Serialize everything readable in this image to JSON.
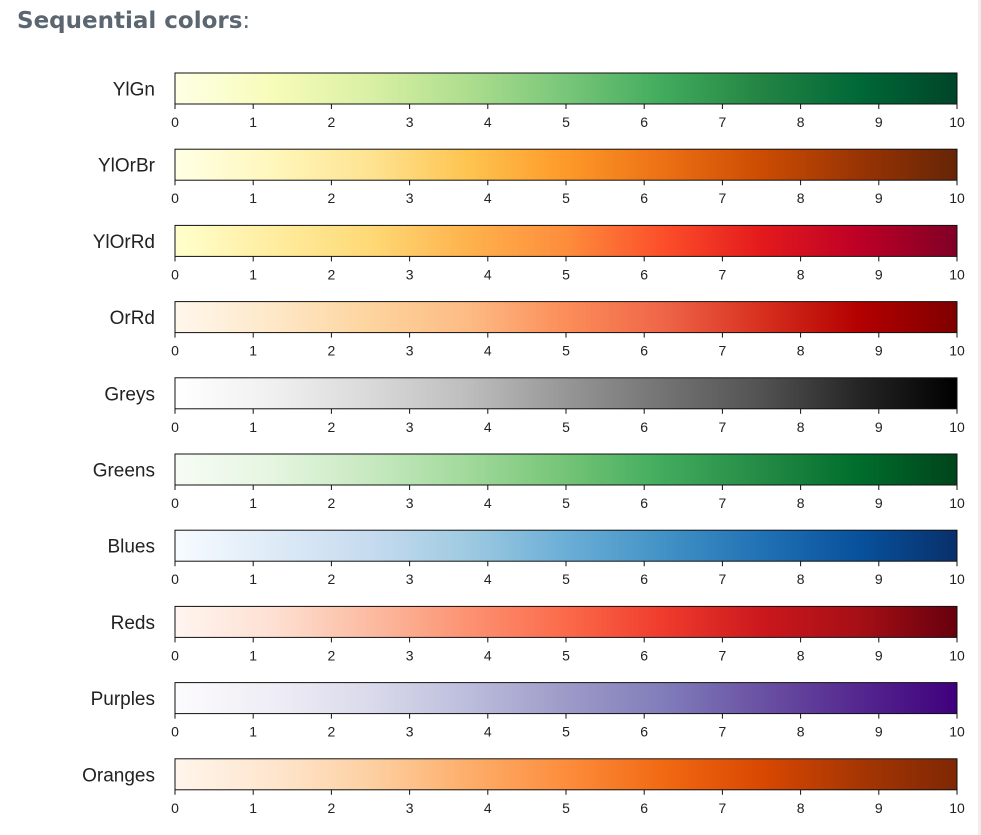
{
  "heading": {
    "bold": "Sequential colors",
    "suffix": ":"
  },
  "chart_data": {
    "type": "heatmap",
    "title": "Sequential colors",
    "xlim": [
      0,
      10
    ],
    "ticks": [
      0,
      1,
      2,
      3,
      4,
      5,
      6,
      7,
      8,
      9,
      10
    ],
    "palettes": [
      {
        "name": "YlGn",
        "colors": [
          "#ffffe5",
          "#f7fcb9",
          "#d9f0a3",
          "#addd8e",
          "#78c679",
          "#41ab5d",
          "#238443",
          "#006837",
          "#004529"
        ]
      },
      {
        "name": "YlOrBr",
        "colors": [
          "#ffffe5",
          "#fff7bc",
          "#fee391",
          "#fec44f",
          "#fe9929",
          "#ec7014",
          "#cc4c02",
          "#993404",
          "#662506"
        ]
      },
      {
        "name": "YlOrRd",
        "colors": [
          "#ffffcc",
          "#ffeda0",
          "#fed976",
          "#feb24c",
          "#fd8d3c",
          "#fc4e2a",
          "#e31a1c",
          "#bd0026",
          "#800026"
        ]
      },
      {
        "name": "OrRd",
        "colors": [
          "#fff7ec",
          "#fee8c8",
          "#fdd49e",
          "#fdbb84",
          "#fc8d59",
          "#ef6548",
          "#d7301f",
          "#b30000",
          "#7f0000"
        ]
      },
      {
        "name": "Greys",
        "colors": [
          "#ffffff",
          "#f0f0f0",
          "#d9d9d9",
          "#bdbdbd",
          "#969696",
          "#737373",
          "#525252",
          "#252525",
          "#000000"
        ]
      },
      {
        "name": "Greens",
        "colors": [
          "#f7fcf5",
          "#e5f5e0",
          "#c7e9c0",
          "#a1d99b",
          "#74c476",
          "#41ab5d",
          "#238b45",
          "#006d2c",
          "#00441b"
        ]
      },
      {
        "name": "Blues",
        "colors": [
          "#f7fbff",
          "#deebf7",
          "#c6dbef",
          "#9ecae1",
          "#6baed6",
          "#4292c6",
          "#2171b5",
          "#08519c",
          "#08306b"
        ]
      },
      {
        "name": "Reds",
        "colors": [
          "#fff5f0",
          "#fee0d2",
          "#fcbba1",
          "#fc9272",
          "#fb6a4a",
          "#ef3b2c",
          "#cb181d",
          "#a50f15",
          "#67000d"
        ]
      },
      {
        "name": "Purples",
        "colors": [
          "#fcfbfd",
          "#efedf5",
          "#dadaeb",
          "#bcbddc",
          "#9e9ac8",
          "#807dba",
          "#6a51a3",
          "#54278f",
          "#3f007d"
        ]
      },
      {
        "name": "Oranges",
        "colors": [
          "#fff5eb",
          "#fee6ce",
          "#fdd0a2",
          "#fdae6b",
          "#fd8d3c",
          "#f16913",
          "#d94801",
          "#a63603",
          "#7f2704"
        ]
      }
    ]
  }
}
